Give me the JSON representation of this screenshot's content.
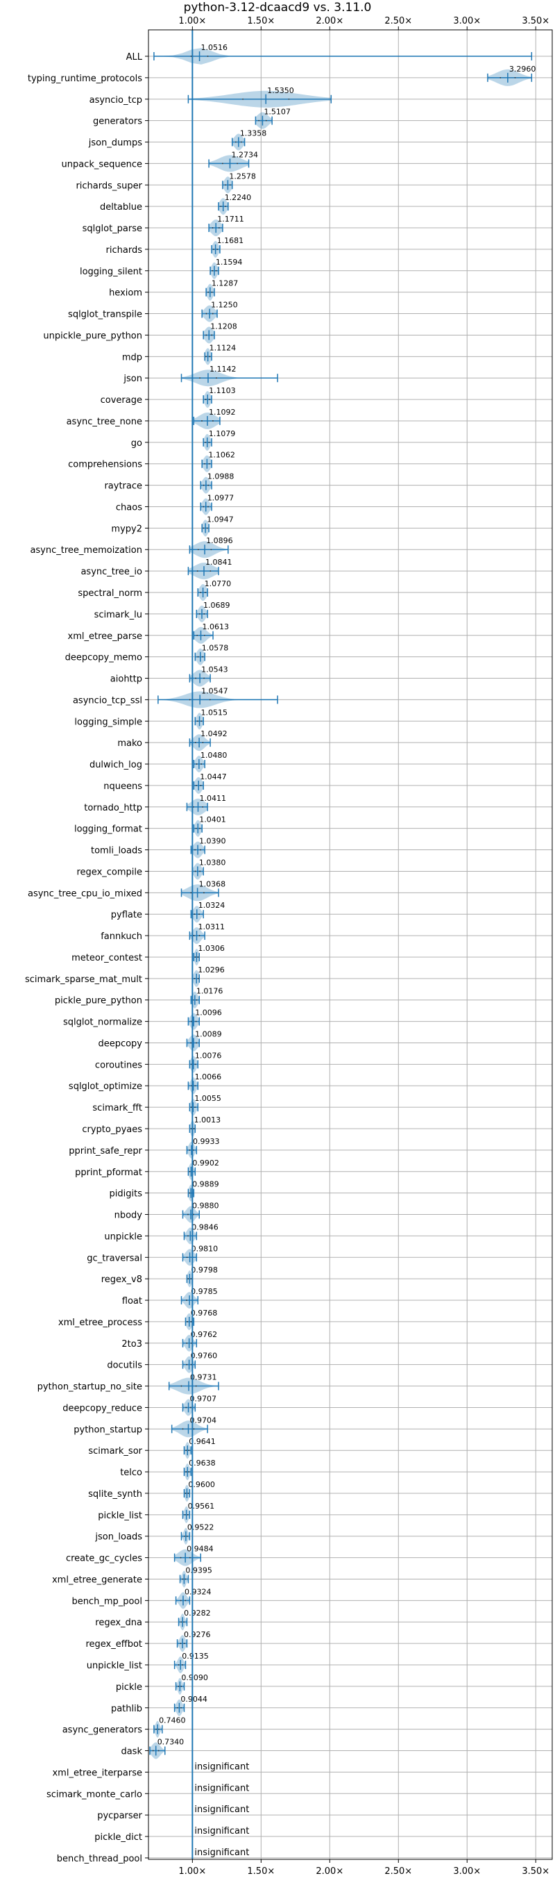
{
  "chart_data": {
    "type": "violin",
    "title": "python-3.12-dcaacd9 vs. 3.11.0",
    "xlabel": "",
    "ylabel": "",
    "x_axis_position": "top-and-bottom",
    "xlim": [
      0.68,
      3.62
    ],
    "xticks": [
      1.0,
      1.5,
      2.0,
      2.5,
      3.0,
      3.5
    ],
    "xtick_labels": [
      "1.00×",
      "1.50×",
      "2.00×",
      "2.50×",
      "3.00×",
      "3.50×"
    ],
    "reference_line": 1.0,
    "grid": true,
    "violin_color": "#1f77b4",
    "insignificant_label": "insignificant",
    "benchmarks": [
      {
        "name": "ALL",
        "value": 1.0516,
        "label": "1.0516",
        "min": 0.72,
        "max": 3.47,
        "spread": 0.09
      },
      {
        "name": "typing_runtime_protocols",
        "value": 3.296,
        "label": "3.2960",
        "min": 3.15,
        "max": 3.47,
        "spread": 0.08
      },
      {
        "name": "asyncio_tcp",
        "value": 1.535,
        "label": "1.5350",
        "min": 0.97,
        "max": 2.01,
        "spread": 0.25
      },
      {
        "name": "generators",
        "value": 1.5107,
        "label": "1.5107",
        "min": 1.46,
        "max": 1.58,
        "spread": 0.04
      },
      {
        "name": "json_dumps",
        "value": 1.3358,
        "label": "1.3358",
        "min": 1.29,
        "max": 1.38,
        "spread": 0.03
      },
      {
        "name": "unpack_sequence",
        "value": 1.2734,
        "label": "1.2734",
        "min": 1.12,
        "max": 1.41,
        "spread": 0.08
      },
      {
        "name": "richards_super",
        "value": 1.2578,
        "label": "1.2578",
        "min": 1.22,
        "max": 1.29,
        "spread": 0.025
      },
      {
        "name": "deltablue",
        "value": 1.224,
        "label": "1.2240",
        "min": 1.19,
        "max": 1.26,
        "spread": 0.025
      },
      {
        "name": "sqlglot_parse",
        "value": 1.1711,
        "label": "1.1711",
        "min": 1.12,
        "max": 1.22,
        "spread": 0.035
      },
      {
        "name": "richards",
        "value": 1.1681,
        "label": "1.1681",
        "min": 1.14,
        "max": 1.2,
        "spread": 0.02
      },
      {
        "name": "logging_silent",
        "value": 1.1594,
        "label": "1.1594",
        "min": 1.13,
        "max": 1.19,
        "spread": 0.02
      },
      {
        "name": "hexiom",
        "value": 1.1287,
        "label": "1.1287",
        "min": 1.1,
        "max": 1.16,
        "spread": 0.02
      },
      {
        "name": "sqlglot_transpile",
        "value": 1.125,
        "label": "1.1250",
        "min": 1.07,
        "max": 1.18,
        "spread": 0.035
      },
      {
        "name": "unpickle_pure_python",
        "value": 1.1208,
        "label": "1.1208",
        "min": 1.08,
        "max": 1.16,
        "spread": 0.03
      },
      {
        "name": "mdp",
        "value": 1.1124,
        "label": "1.1124",
        "min": 1.09,
        "max": 1.14,
        "spread": 0.02
      },
      {
        "name": "json",
        "value": 1.1142,
        "label": "1.1142",
        "min": 0.92,
        "max": 1.62,
        "spread": 0.09
      },
      {
        "name": "coverage",
        "value": 1.1103,
        "label": "1.1103",
        "min": 1.08,
        "max": 1.14,
        "spread": 0.02
      },
      {
        "name": "async_tree_none",
        "value": 1.1092,
        "label": "1.1092",
        "min": 1.01,
        "max": 1.2,
        "spread": 0.06
      },
      {
        "name": "go",
        "value": 1.1079,
        "label": "1.1079",
        "min": 1.08,
        "max": 1.14,
        "spread": 0.02
      },
      {
        "name": "comprehensions",
        "value": 1.1062,
        "label": "1.1062",
        "min": 1.07,
        "max": 1.14,
        "spread": 0.025
      },
      {
        "name": "raytrace",
        "value": 1.0988,
        "label": "1.0988",
        "min": 1.06,
        "max": 1.14,
        "spread": 0.025
      },
      {
        "name": "chaos",
        "value": 1.0977,
        "label": "1.0977",
        "min": 1.06,
        "max": 1.14,
        "spread": 0.025
      },
      {
        "name": "mypy2",
        "value": 1.0947,
        "label": "1.0947",
        "min": 1.07,
        "max": 1.12,
        "spread": 0.02
      },
      {
        "name": "async_tree_memoization",
        "value": 1.0896,
        "label": "1.0896",
        "min": 0.98,
        "max": 1.26,
        "spread": 0.07
      },
      {
        "name": "async_tree_io",
        "value": 1.0841,
        "label": "1.0841",
        "min": 0.97,
        "max": 1.19,
        "spread": 0.07
      },
      {
        "name": "spectral_norm",
        "value": 1.077,
        "label": "1.0770",
        "min": 1.04,
        "max": 1.11,
        "spread": 0.025
      },
      {
        "name": "scimark_lu",
        "value": 1.0689,
        "label": "1.0689",
        "min": 1.03,
        "max": 1.11,
        "spread": 0.025
      },
      {
        "name": "xml_etree_parse",
        "value": 1.0613,
        "label": "1.0613",
        "min": 1.01,
        "max": 1.15,
        "spread": 0.04
      },
      {
        "name": "deepcopy_memo",
        "value": 1.0578,
        "label": "1.0578",
        "min": 1.02,
        "max": 1.09,
        "spread": 0.025
      },
      {
        "name": "aiohttp",
        "value": 1.0543,
        "label": "1.0543",
        "min": 0.98,
        "max": 1.13,
        "spread": 0.045
      },
      {
        "name": "asyncio_tcp_ssl",
        "value": 1.0547,
        "label": "1.0547",
        "min": 0.75,
        "max": 1.62,
        "spread": 0.11
      },
      {
        "name": "logging_simple",
        "value": 1.0515,
        "label": "1.0515",
        "min": 1.02,
        "max": 1.08,
        "spread": 0.02
      },
      {
        "name": "mako",
        "value": 1.0492,
        "label": "1.0492",
        "min": 0.98,
        "max": 1.13,
        "spread": 0.04
      },
      {
        "name": "dulwich_log",
        "value": 1.048,
        "label": "1.0480",
        "min": 1.01,
        "max": 1.09,
        "spread": 0.025
      },
      {
        "name": "nqueens",
        "value": 1.0447,
        "label": "1.0447",
        "min": 1.01,
        "max": 1.08,
        "spread": 0.025
      },
      {
        "name": "tornado_http",
        "value": 1.0411,
        "label": "1.0411",
        "min": 0.96,
        "max": 1.11,
        "spread": 0.05
      },
      {
        "name": "logging_format",
        "value": 1.0401,
        "label": "1.0401",
        "min": 1.01,
        "max": 1.07,
        "spread": 0.02
      },
      {
        "name": "tomli_loads",
        "value": 1.039,
        "label": "1.0390",
        "min": 0.99,
        "max": 1.09,
        "spread": 0.03
      },
      {
        "name": "regex_compile",
        "value": 1.038,
        "label": "1.0380",
        "min": 1.0,
        "max": 1.08,
        "spread": 0.025
      },
      {
        "name": "async_tree_cpu_io_mixed",
        "value": 1.0368,
        "label": "1.0368",
        "min": 0.92,
        "max": 1.19,
        "spread": 0.07
      },
      {
        "name": "pyflate",
        "value": 1.0324,
        "label": "1.0324",
        "min": 0.99,
        "max": 1.08,
        "spread": 0.025
      },
      {
        "name": "fannkuch",
        "value": 1.0311,
        "label": "1.0311",
        "min": 0.98,
        "max": 1.09,
        "spread": 0.03
      },
      {
        "name": "meteor_contest",
        "value": 1.0306,
        "label": "1.0306",
        "min": 1.01,
        "max": 1.05,
        "spread": 0.015
      },
      {
        "name": "scimark_sparse_mat_mult",
        "value": 1.0296,
        "label": "1.0296",
        "min": 1.0,
        "max": 1.05,
        "spread": 0.02
      },
      {
        "name": "pickle_pure_python",
        "value": 1.0176,
        "label": "1.0176",
        "min": 0.99,
        "max": 1.05,
        "spread": 0.02
      },
      {
        "name": "sqlglot_normalize",
        "value": 1.0096,
        "label": "1.0096",
        "min": 0.97,
        "max": 1.05,
        "spread": 0.025
      },
      {
        "name": "deepcopy",
        "value": 1.0089,
        "label": "1.0089",
        "min": 0.96,
        "max": 1.05,
        "spread": 0.03
      },
      {
        "name": "coroutines",
        "value": 1.0076,
        "label": "1.0076",
        "min": 0.98,
        "max": 1.04,
        "spread": 0.02
      },
      {
        "name": "sqlglot_optimize",
        "value": 1.0066,
        "label": "1.0066",
        "min": 0.97,
        "max": 1.04,
        "spread": 0.02
      },
      {
        "name": "scimark_fft",
        "value": 1.0055,
        "label": "1.0055",
        "min": 0.98,
        "max": 1.04,
        "spread": 0.02
      },
      {
        "name": "crypto_pyaes",
        "value": 1.0013,
        "label": "1.0013",
        "min": 0.98,
        "max": 1.02,
        "spread": 0.015
      },
      {
        "name": "pprint_safe_repr",
        "value": 0.9933,
        "label": "0.9933",
        "min": 0.96,
        "max": 1.03,
        "spread": 0.02
      },
      {
        "name": "pprint_pformat",
        "value": 0.9902,
        "label": "0.9902",
        "min": 0.97,
        "max": 1.02,
        "spread": 0.015
      },
      {
        "name": "pidigits",
        "value": 0.9889,
        "label": "0.9889",
        "min": 0.97,
        "max": 1.01,
        "spread": 0.015
      },
      {
        "name": "nbody",
        "value": 0.988,
        "label": "0.9880",
        "min": 0.93,
        "max": 1.05,
        "spread": 0.03
      },
      {
        "name": "unpickle",
        "value": 0.9846,
        "label": "0.9846",
        "min": 0.94,
        "max": 1.03,
        "spread": 0.025
      },
      {
        "name": "gc_traversal",
        "value": 0.981,
        "label": "0.9810",
        "min": 0.93,
        "max": 1.03,
        "spread": 0.03
      },
      {
        "name": "regex_v8",
        "value": 0.9798,
        "label": "0.9798",
        "min": 0.96,
        "max": 1.0,
        "spread": 0.015
      },
      {
        "name": "float",
        "value": 0.9785,
        "label": "0.9785",
        "min": 0.92,
        "max": 1.04,
        "spread": 0.03
      },
      {
        "name": "xml_etree_process",
        "value": 0.9768,
        "label": "0.9768",
        "min": 0.95,
        "max": 1.01,
        "spread": 0.02
      },
      {
        "name": "2to3",
        "value": 0.9762,
        "label": "0.9762",
        "min": 0.93,
        "max": 1.03,
        "spread": 0.025
      },
      {
        "name": "docutils",
        "value": 0.976,
        "label": "0.9760",
        "min": 0.93,
        "max": 1.02,
        "spread": 0.025
      },
      {
        "name": "python_startup_no_site",
        "value": 0.9731,
        "label": "0.9731",
        "min": 0.83,
        "max": 1.19,
        "spread": 0.08
      },
      {
        "name": "deepcopy_reduce",
        "value": 0.9707,
        "label": "0.9707",
        "min": 0.93,
        "max": 1.02,
        "spread": 0.025
      },
      {
        "name": "python_startup",
        "value": 0.9704,
        "label": "0.9704",
        "min": 0.85,
        "max": 1.11,
        "spread": 0.06
      },
      {
        "name": "scimark_sor",
        "value": 0.9641,
        "label": "0.9641",
        "min": 0.94,
        "max": 0.99,
        "spread": 0.015
      },
      {
        "name": "telco",
        "value": 0.9638,
        "label": "0.9638",
        "min": 0.94,
        "max": 0.99,
        "spread": 0.015
      },
      {
        "name": "sqlite_synth",
        "value": 0.96,
        "label": "0.9600",
        "min": 0.94,
        "max": 0.98,
        "spread": 0.015
      },
      {
        "name": "pickle_list",
        "value": 0.9561,
        "label": "0.9561",
        "min": 0.93,
        "max": 0.98,
        "spread": 0.015
      },
      {
        "name": "json_loads",
        "value": 0.9522,
        "label": "0.9522",
        "min": 0.92,
        "max": 0.98,
        "spread": 0.015
      },
      {
        "name": "create_gc_cycles",
        "value": 0.9484,
        "label": "0.9484",
        "min": 0.87,
        "max": 1.06,
        "spread": 0.05
      },
      {
        "name": "xml_etree_generate",
        "value": 0.9395,
        "label": "0.9395",
        "min": 0.91,
        "max": 0.97,
        "spread": 0.015
      },
      {
        "name": "bench_mp_pool",
        "value": 0.9324,
        "label": "0.9324",
        "min": 0.88,
        "max": 0.98,
        "spread": 0.025
      },
      {
        "name": "regex_dna",
        "value": 0.9282,
        "label": "0.9282",
        "min": 0.9,
        "max": 0.96,
        "spread": 0.015
      },
      {
        "name": "regex_effbot",
        "value": 0.9276,
        "label": "0.9276",
        "min": 0.89,
        "max": 0.96,
        "spread": 0.02
      },
      {
        "name": "unpickle_list",
        "value": 0.9135,
        "label": "0.9135",
        "min": 0.87,
        "max": 0.95,
        "spread": 0.02
      },
      {
        "name": "pickle",
        "value": 0.909,
        "label": "0.9090",
        "min": 0.88,
        "max": 0.94,
        "spread": 0.015
      },
      {
        "name": "pathlib",
        "value": 0.9044,
        "label": "0.9044",
        "min": 0.87,
        "max": 0.94,
        "spread": 0.02
      },
      {
        "name": "async_generators",
        "value": 0.746,
        "label": "0.7460",
        "min": 0.72,
        "max": 0.78,
        "spread": 0.015
      },
      {
        "name": "dask",
        "value": 0.734,
        "label": "0.7340",
        "min": 0.69,
        "max": 0.8,
        "spread": 0.03
      },
      {
        "name": "xml_etree_iterparse",
        "insignificant": true
      },
      {
        "name": "scimark_monte_carlo",
        "insignificant": true
      },
      {
        "name": "pycparser",
        "insignificant": true
      },
      {
        "name": "pickle_dict",
        "insignificant": true
      },
      {
        "name": "bench_thread_pool",
        "insignificant": true
      }
    ]
  }
}
